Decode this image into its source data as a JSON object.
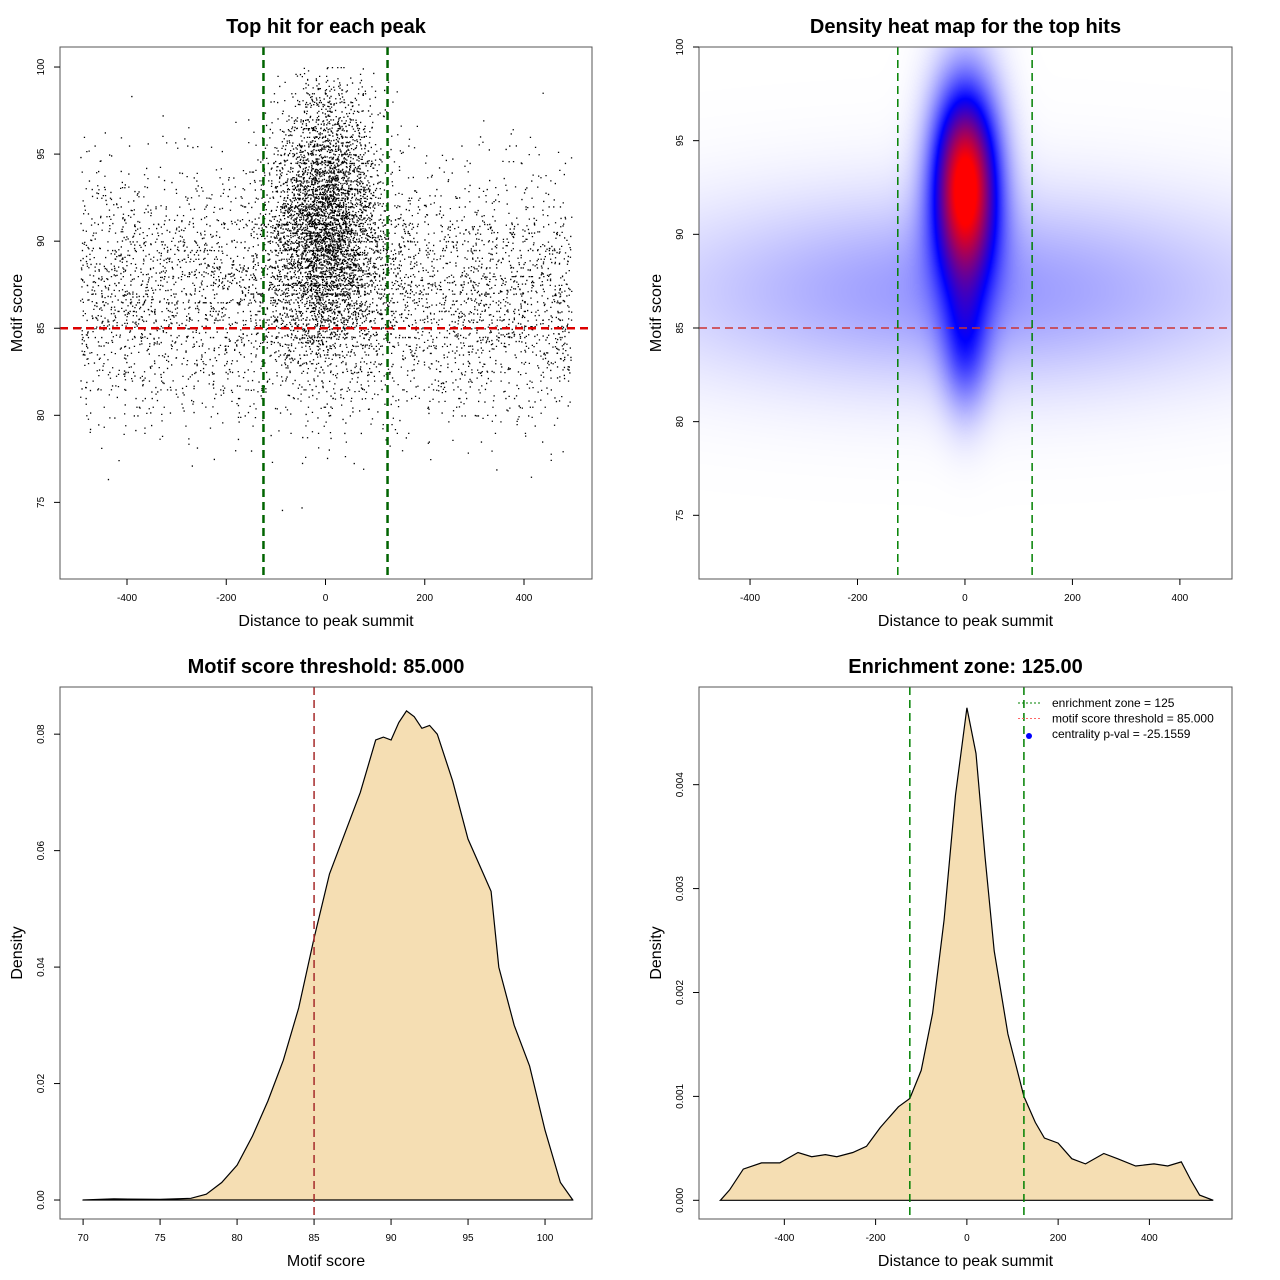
{
  "chart_data": [
    {
      "type": "scatter",
      "title": "Top hit for each peak",
      "xlabel": "Distance to peak summit",
      "ylabel": "Motif score",
      "xlim": [
        -535,
        537
      ],
      "ylim": [
        70.6,
        101.15
      ],
      "xticks": [
        -400,
        -200,
        0,
        200,
        400
      ],
      "yticks": [
        75,
        80,
        85,
        90,
        95,
        100
      ],
      "hlines": [
        {
          "y": 85,
          "color": "#dd0000",
          "style": "dashed"
        }
      ],
      "vlines": [
        {
          "x": -125,
          "color": "#006400",
          "style": "dashed"
        },
        {
          "x": 125,
          "color": "#006400",
          "style": "dashed"
        }
      ],
      "point_color": "#000000",
      "grid": false
    },
    {
      "type": "heatmap",
      "title": "Density heat map for the top hits",
      "xlabel": "Distance to peak summit",
      "ylabel": "Motif score",
      "xlim": [
        -495,
        497
      ],
      "ylim": [
        71.6,
        100
      ],
      "xticks": [
        -400,
        -200,
        0,
        200,
        400
      ],
      "yticks": [
        75,
        80,
        85,
        90,
        95,
        100
      ],
      "colorscale": [
        "#ffffff",
        "#0000ff",
        "#ff0000"
      ],
      "peak": {
        "x": 0,
        "y": 92.7
      },
      "hlines": [
        {
          "y": 85,
          "color": "#cc3333",
          "style": "dashed"
        }
      ],
      "vlines": [
        {
          "x": -125,
          "color": "#008000",
          "style": "dashed"
        },
        {
          "x": 125,
          "color": "#008000",
          "style": "dashed"
        }
      ],
      "grid": false
    },
    {
      "type": "area",
      "title": "Motif score threshold: 85.000",
      "xlabel": "Motif score",
      "ylabel": "Density",
      "xlim": [
        68.5,
        103.05
      ],
      "ylim": [
        -0.00326,
        0.0881
      ],
      "xticks": [
        70,
        75,
        80,
        85,
        90,
        95,
        100
      ],
      "yticks": [
        0.0,
        0.02,
        0.04,
        0.06,
        0.08
      ],
      "ytick_labels": [
        "0.00",
        "0.02",
        "0.04",
        "0.06",
        "0.08"
      ],
      "fill": "#f5deb3",
      "vlines": [
        {
          "x": 85,
          "color": "#a52a2a",
          "style": "dashed"
        }
      ],
      "x": [
        70,
        72,
        75,
        77,
        78,
        79,
        80,
        81,
        82,
        83,
        84,
        85,
        86,
        87,
        88,
        89,
        89.5,
        90,
        90.5,
        91,
        91.5,
        92,
        92.5,
        93,
        94,
        95,
        96,
        96.5,
        97,
        98,
        99,
        100,
        101,
        101.8
      ],
      "y": [
        0,
        0.0002,
        0.0001,
        0.0003,
        0.001,
        0.003,
        0.006,
        0.011,
        0.017,
        0.024,
        0.033,
        0.045,
        0.056,
        0.063,
        0.07,
        0.079,
        0.0795,
        0.079,
        0.082,
        0.084,
        0.083,
        0.081,
        0.0815,
        0.08,
        0.072,
        0.062,
        0.056,
        0.053,
        0.04,
        0.03,
        0.023,
        0.012,
        0.003,
        0
      ],
      "grid": false
    },
    {
      "type": "area",
      "title": "Enrichment zone: 125.00",
      "xlabel": "Distance to peak summit",
      "ylabel": "Density",
      "xlim": [
        -587,
        581
      ],
      "ylim": [
        -0.00018,
        0.00494
      ],
      "xticks": [
        -400,
        -200,
        0,
        200,
        400
      ],
      "yticks": [
        0,
        0.001,
        0.002,
        0.003,
        0.004
      ],
      "ytick_labels": [
        "0.000",
        "0.001",
        "0.002",
        "0.003",
        "0.004"
      ],
      "fill": "#f5deb3",
      "vlines": [
        {
          "x": -125,
          "color": "#008000",
          "style": "dashed"
        },
        {
          "x": 125,
          "color": "#008000",
          "style": "dashed"
        }
      ],
      "x": [
        -540,
        -520,
        -490,
        -450,
        -410,
        -370,
        -340,
        -310,
        -285,
        -250,
        -220,
        -190,
        -150,
        -125,
        -100,
        -75,
        -50,
        -25,
        0,
        20,
        40,
        60,
        90,
        125,
        150,
        170,
        200,
        230,
        260,
        300,
        330,
        370,
        410,
        440,
        470,
        490,
        510,
        540
      ],
      "y": [
        0,
        0.0001,
        0.0003,
        0.00036,
        0.00036,
        0.00046,
        0.00042,
        0.00044,
        0.00042,
        0.00046,
        0.00052,
        0.0007,
        0.0009,
        0.00098,
        0.00125,
        0.0018,
        0.0027,
        0.0039,
        0.00474,
        0.0043,
        0.0033,
        0.0024,
        0.0016,
        0.001,
        0.00075,
        0.0006,
        0.00055,
        0.0004,
        0.00035,
        0.00045,
        0.0004,
        0.00033,
        0.00035,
        0.00033,
        0.00037,
        0.0002,
        5e-05,
        0
      ],
      "legend": {
        "position": "top-right",
        "entries": [
          {
            "label": "enrichment zone = 125",
            "color": "#008000",
            "style": "dotted"
          },
          {
            "label": "motif score threshold = 85.000",
            "color": "#ff6666",
            "style": "dotted"
          },
          {
            "label": "centrality p-val = -25.1559",
            "color": "#0000ff",
            "style": "point"
          }
        ]
      },
      "grid": false
    }
  ]
}
